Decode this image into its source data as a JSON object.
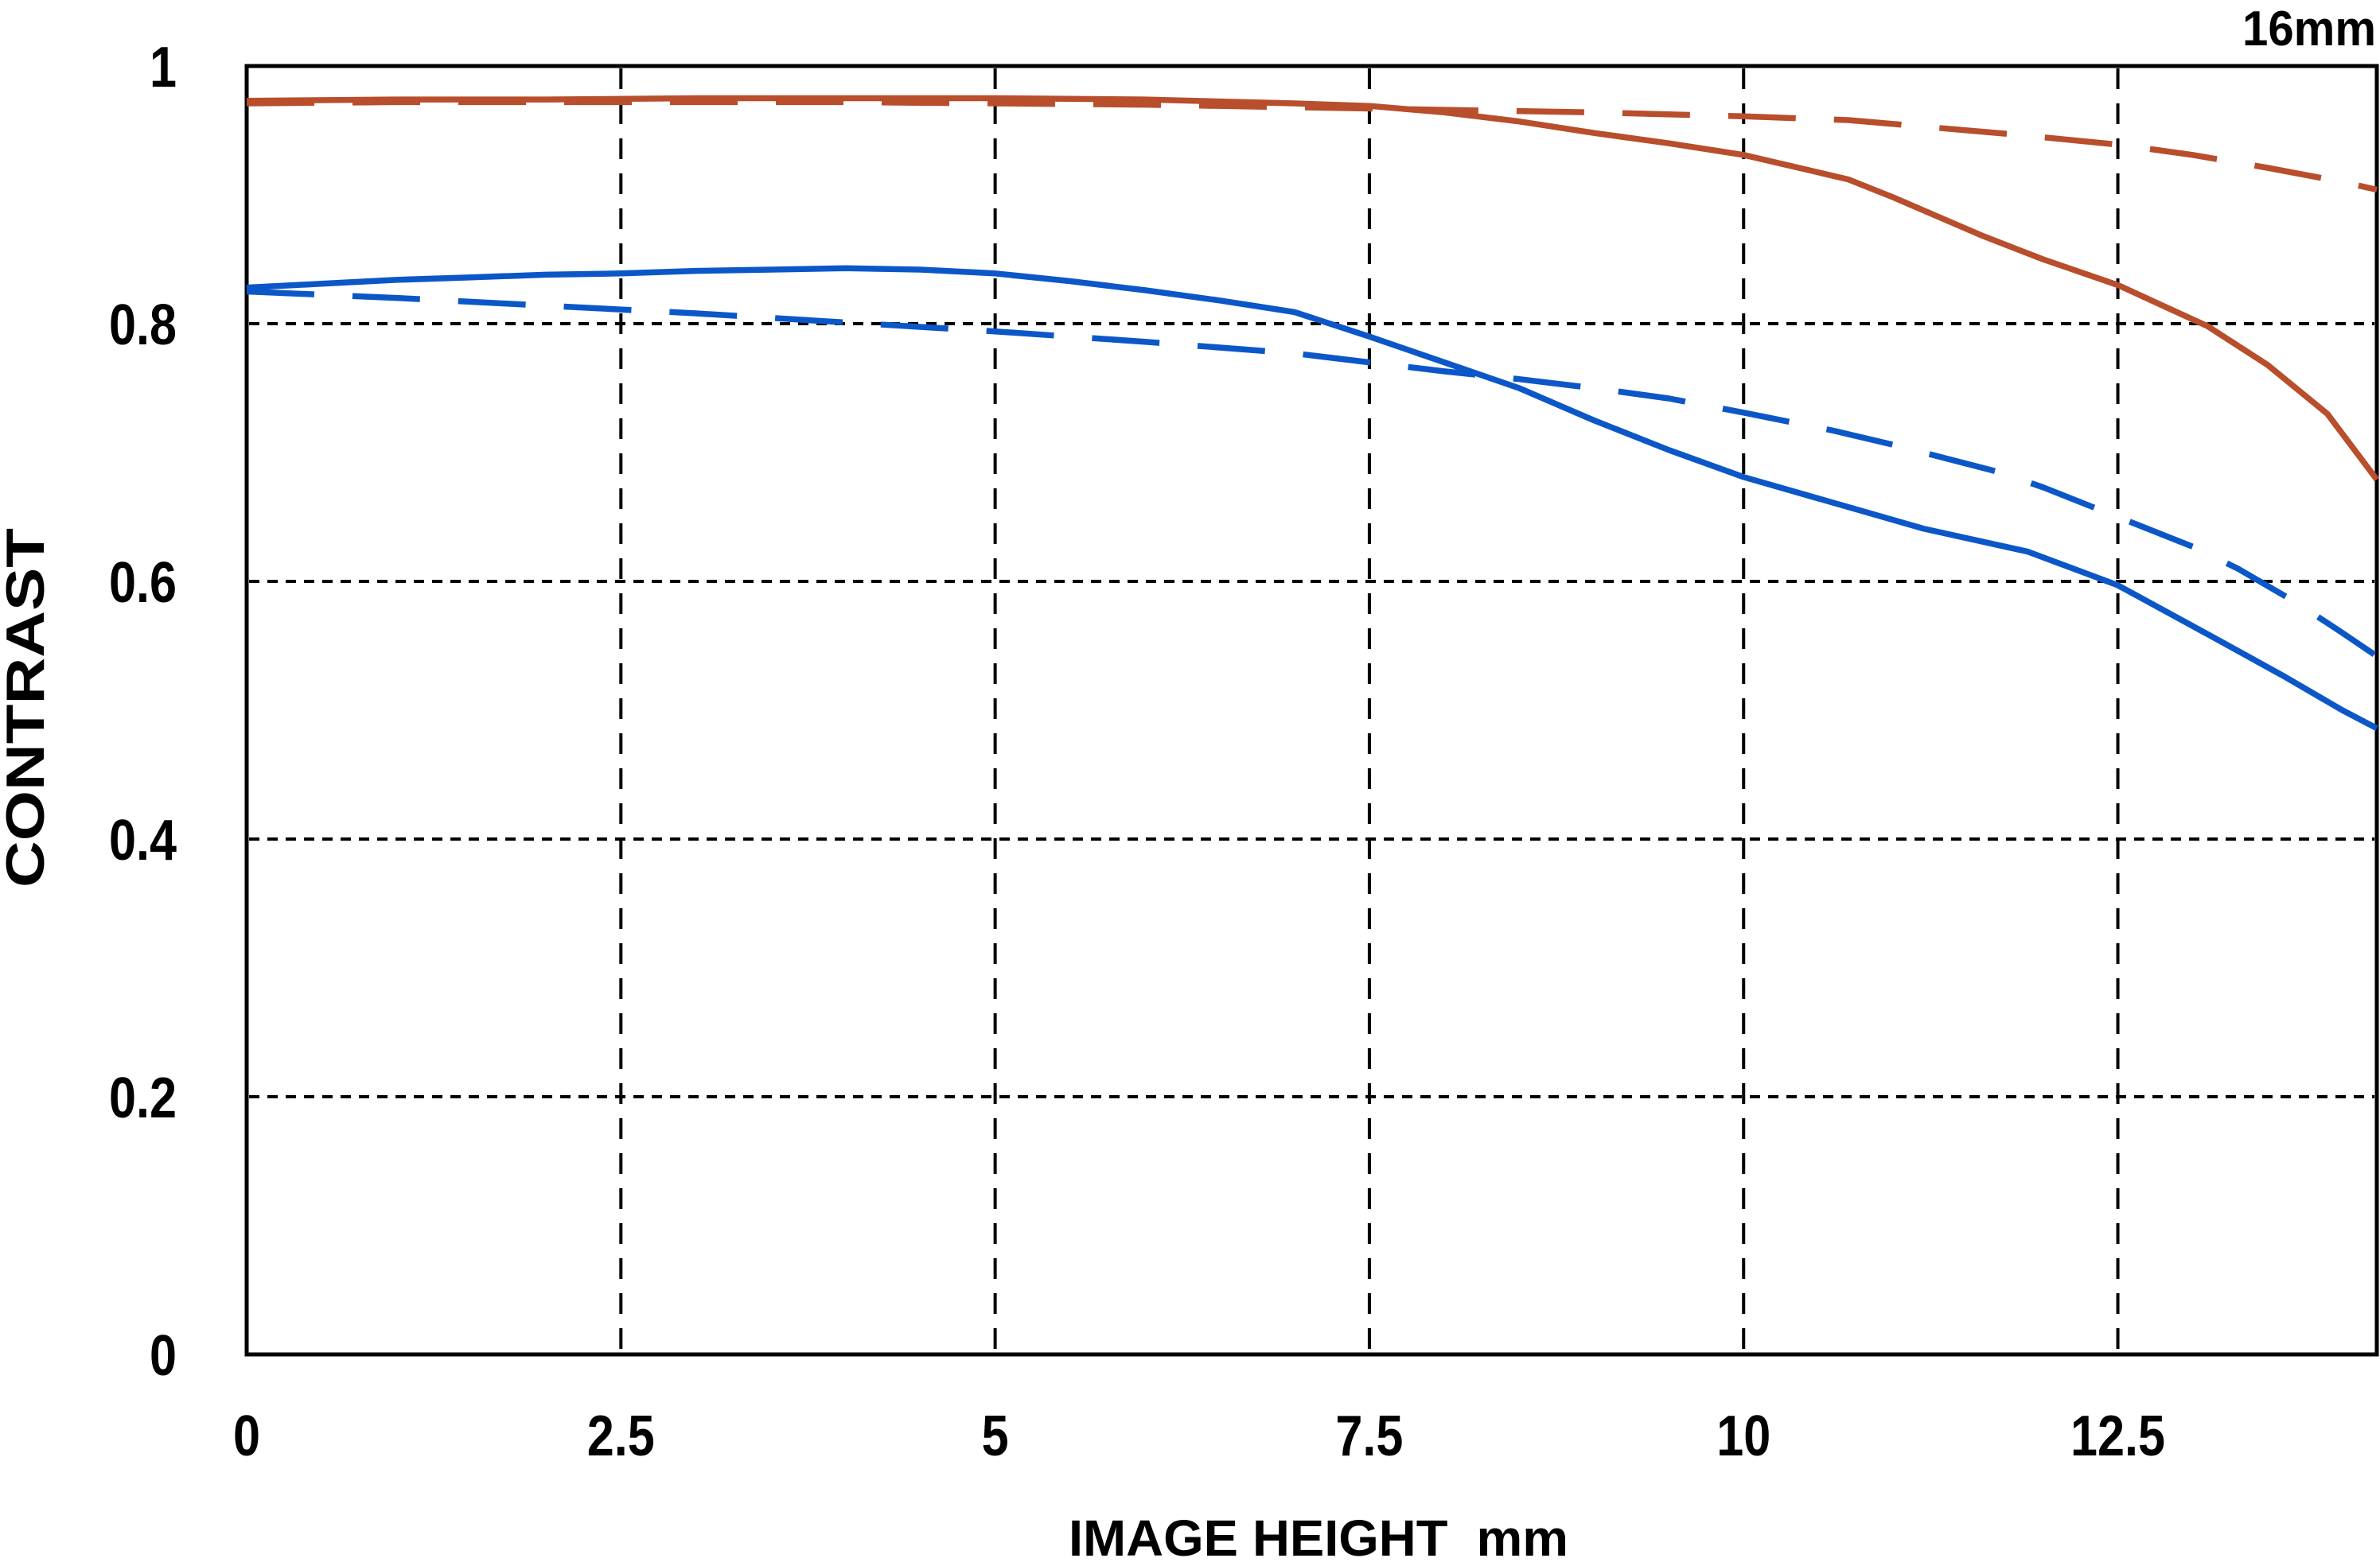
{
  "chart_data": {
    "type": "line",
    "annotation": "16mm",
    "xlabel": "IMAGE HEIGHT  mm",
    "ylabel": "CONTRAST",
    "xlim": [
      0,
      14.23
    ],
    "ylim": [
      0,
      1
    ],
    "grid": "dashed",
    "background_color": "#ffffff",
    "axis_color": "#000000",
    "legend": "none",
    "x_ticks": {
      "values": [
        0,
        2.5,
        5,
        7.5,
        10,
        12.5
      ],
      "labels": [
        "0",
        "2.5",
        "5",
        "7.5",
        "10",
        "12.5"
      ]
    },
    "y_ticks": {
      "values": [
        0,
        0.2,
        0.4,
        0.6,
        0.8,
        1
      ],
      "labels": [
        "0",
        "0.2",
        "0.4",
        "0.6",
        "0.8",
        "1"
      ]
    },
    "series": [
      {
        "name": "red-dashed",
        "color": "#b84e2c",
        "style": "dashed",
        "points": [
          [
            0,
            0.971
          ],
          [
            1,
            0.972
          ],
          [
            2,
            0.972
          ],
          [
            3,
            0.972
          ],
          [
            4,
            0.972
          ],
          [
            5,
            0.971
          ],
          [
            6,
            0.97
          ],
          [
            7,
            0.968
          ],
          [
            8,
            0.966
          ],
          [
            9,
            0.964
          ],
          [
            10,
            0.961
          ],
          [
            10.7,
            0.958
          ],
          [
            11.3,
            0.952
          ],
          [
            11.8,
            0.947
          ],
          [
            12.5,
            0.939
          ],
          [
            13,
            0.931
          ],
          [
            13.5,
            0.921
          ],
          [
            14,
            0.91
          ],
          [
            14.23,
            0.904
          ]
        ]
      },
      {
        "name": "red-solid",
        "color": "#b84e2c",
        "style": "solid",
        "points": [
          [
            0,
            0.973
          ],
          [
            1,
            0.974
          ],
          [
            2,
            0.974
          ],
          [
            3,
            0.975
          ],
          [
            4,
            0.975
          ],
          [
            5,
            0.975
          ],
          [
            6,
            0.974
          ],
          [
            7,
            0.971
          ],
          [
            7.5,
            0.969
          ],
          [
            8,
            0.964
          ],
          [
            8.5,
            0.957
          ],
          [
            9,
            0.948
          ],
          [
            9.5,
            0.94
          ],
          [
            10,
            0.931
          ],
          [
            10.7,
            0.912
          ],
          [
            11,
            0.898
          ],
          [
            11.6,
            0.868
          ],
          [
            12,
            0.85
          ],
          [
            12.5,
            0.83
          ],
          [
            13.1,
            0.798
          ],
          [
            13.5,
            0.768
          ],
          [
            13.9,
            0.73
          ],
          [
            14.23,
            0.679
          ]
        ]
      },
      {
        "name": "blue-dashed",
        "color": "#0c57c8",
        "style": "dashed",
        "points": [
          [
            0,
            0.825
          ],
          [
            1,
            0.82
          ],
          [
            2,
            0.814
          ],
          [
            3,
            0.808
          ],
          [
            4,
            0.801
          ],
          [
            5,
            0.794
          ],
          [
            6,
            0.786
          ],
          [
            7,
            0.777
          ],
          [
            7.5,
            0.77
          ],
          [
            8,
            0.763
          ],
          [
            8.5,
            0.757
          ],
          [
            9,
            0.75
          ],
          [
            9.5,
            0.742
          ],
          [
            10,
            0.731
          ],
          [
            10.6,
            0.717
          ],
          [
            11,
            0.706
          ],
          [
            11.7,
            0.685
          ],
          [
            12,
            0.673
          ],
          [
            12.5,
            0.65
          ],
          [
            13,
            0.627
          ],
          [
            13.3,
            0.61
          ],
          [
            13.7,
            0.583
          ],
          [
            14,
            0.56
          ],
          [
            14.23,
            0.542
          ]
        ]
      },
      {
        "name": "blue-solid",
        "color": "#0c57c8",
        "style": "solid",
        "points": [
          [
            0,
            0.828
          ],
          [
            0.5,
            0.831
          ],
          [
            1,
            0.834
          ],
          [
            1.5,
            0.836
          ],
          [
            2,
            0.838
          ],
          [
            2.5,
            0.839
          ],
          [
            3,
            0.841
          ],
          [
            3.5,
            0.842
          ],
          [
            4,
            0.843
          ],
          [
            4.5,
            0.842
          ],
          [
            5,
            0.839
          ],
          [
            5.5,
            0.833
          ],
          [
            6,
            0.826
          ],
          [
            6.5,
            0.818
          ],
          [
            7,
            0.809
          ],
          [
            7.5,
            0.79
          ],
          [
            8,
            0.77
          ],
          [
            8.5,
            0.75
          ],
          [
            9,
            0.725
          ],
          [
            9.5,
            0.702
          ],
          [
            10,
            0.681
          ],
          [
            10.6,
            0.661
          ],
          [
            11.2,
            0.641
          ],
          [
            11.9,
            0.623
          ],
          [
            12.5,
            0.597
          ],
          [
            13.1,
            0.559
          ],
          [
            13.6,
            0.527
          ],
          [
            14,
            0.5
          ],
          [
            14.23,
            0.486
          ]
        ]
      }
    ]
  }
}
